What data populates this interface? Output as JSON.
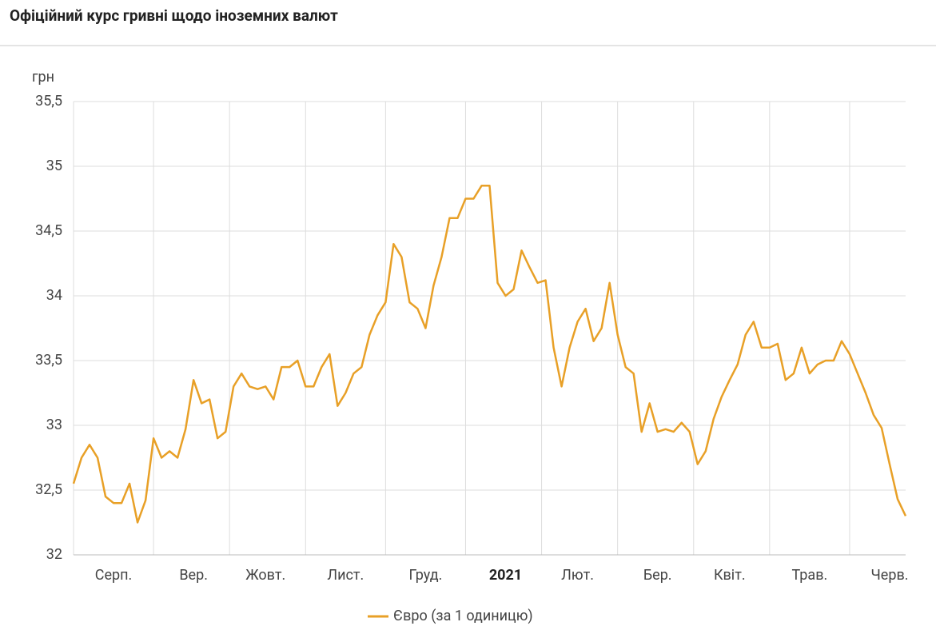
{
  "chart_data": {
    "type": "line",
    "title": "Офіційний курс гривні щодо іноземних валют",
    "y_label": "грн",
    "categories": [
      null,
      null,
      null,
      null,
      null,
      "Серп.",
      null,
      null,
      null,
      null,
      null,
      null,
      null,
      null,
      null,
      "Вер.",
      null,
      null,
      null,
      null,
      null,
      null,
      null,
      null,
      "Жовт.",
      null,
      null,
      null,
      null,
      null,
      null,
      null,
      null,
      null,
      "Лист.",
      null,
      null,
      null,
      null,
      null,
      null,
      null,
      null,
      null,
      "Груд.",
      null,
      null,
      null,
      null,
      null,
      null,
      null,
      null,
      null,
      "2021",
      null,
      null,
      null,
      null,
      null,
      null,
      null,
      null,
      "Лют.",
      null,
      null,
      null,
      null,
      null,
      null,
      null,
      null,
      null,
      "Бер.",
      null,
      null,
      null,
      null,
      null,
      null,
      null,
      null,
      "Квіт.",
      null,
      null,
      null,
      null,
      null,
      null,
      null,
      null,
      null,
      "Трав.",
      null,
      null,
      null,
      null,
      null,
      null,
      null,
      null,
      null,
      "Черв.",
      null,
      null
    ],
    "series": [
      {
        "name": "Євро (за 1 одиницю)",
        "color": "#e8a027",
        "values": [
          32.55,
          32.75,
          32.85,
          32.75,
          32.45,
          32.4,
          32.4,
          32.55,
          32.25,
          32.42,
          32.9,
          32.75,
          32.8,
          32.75,
          32.97,
          33.35,
          33.17,
          33.2,
          32.9,
          32.95,
          33.3,
          33.4,
          33.3,
          33.28,
          33.3,
          33.2,
          33.45,
          33.45,
          33.5,
          33.3,
          33.3,
          33.45,
          33.55,
          33.15,
          33.25,
          33.4,
          33.45,
          33.7,
          33.85,
          33.95,
          34.4,
          34.3,
          33.95,
          33.9,
          33.75,
          34.08,
          34.3,
          34.6,
          34.6,
          34.75,
          34.75,
          34.85,
          34.85,
          34.1,
          34.0,
          34.05,
          34.35,
          34.22,
          34.1,
          34.12,
          33.6,
          33.3,
          33.6,
          33.8,
          33.9,
          33.65,
          33.75,
          34.1,
          33.7,
          33.45,
          33.4,
          32.95,
          33.17,
          32.95,
          32.97,
          32.95,
          33.02,
          32.95,
          32.7,
          32.8,
          33.05,
          33.22,
          33.35,
          33.47,
          33.7,
          33.8,
          33.6,
          33.6,
          33.63,
          33.35,
          33.4,
          33.6,
          33.4,
          33.47,
          33.5,
          33.5,
          33.65,
          33.55,
          33.4,
          33.25,
          33.08,
          32.98,
          32.7,
          32.43,
          32.3
        ]
      }
    ],
    "ylim": [
      32,
      35.5
    ],
    "yticks": [
      32,
      {
        "value": 32.5,
        "label": "32,5"
      },
      33,
      {
        "value": 33.5,
        "label": "33,5"
      },
      34,
      {
        "value": 34.5,
        "label": "34,5"
      },
      35,
      {
        "value": 35.5,
        "label": "35,5"
      }
    ],
    "grid": true,
    "legend": "bottom"
  }
}
